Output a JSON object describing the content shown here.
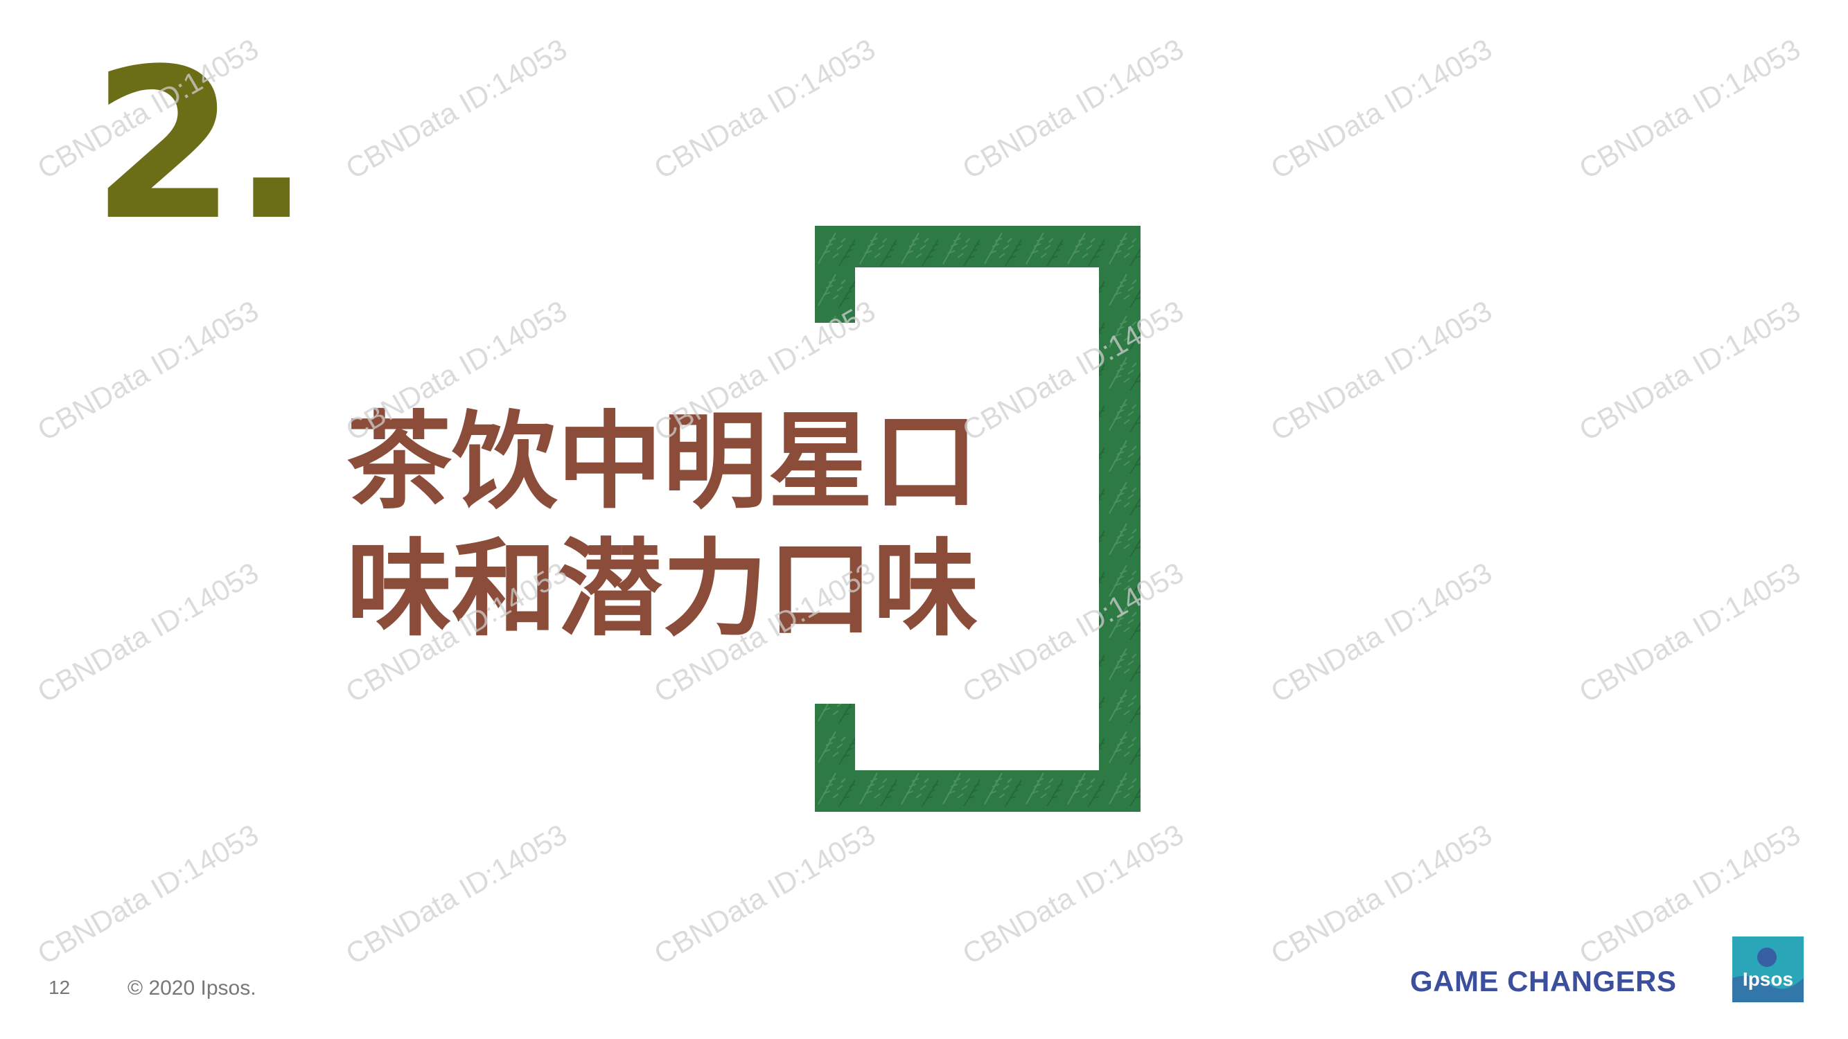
{
  "slide": {
    "section_number": "2.",
    "title_lines": [
      "茶饮中明星口",
      "味和潜力口味"
    ],
    "footer": {
      "page_number": "12",
      "copyright": "© 2020 Ipsos.",
      "tagline": "GAME CHANGERS",
      "logo_text": "Ipsos"
    }
  },
  "watermark": {
    "text": "CBNData ID:14053"
  },
  "colors": {
    "section_number": "#6b6e17",
    "title": "#8b4d39",
    "bracket": "#2e7a45",
    "tagline": "#3b4f9c",
    "logo": "#2aa6b8"
  },
  "icons": {
    "logo": "ipsos-logo-icon",
    "bracket": "fern-bracket-decoration"
  }
}
